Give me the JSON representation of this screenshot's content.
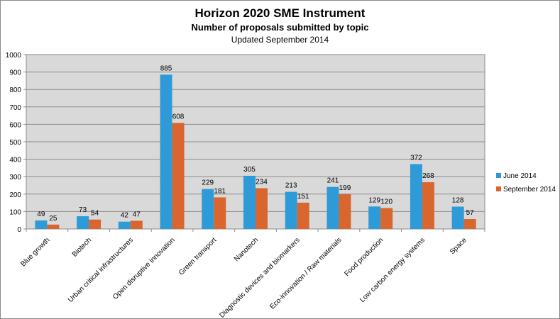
{
  "chart_data": {
    "type": "bar",
    "title": "Horizon 2020 SME Instrument",
    "subtitle": "Number of proposals submitted by topic",
    "updated": "Updated September  2014",
    "categories": [
      "Blue growth",
      "Biotech",
      "Urban critical infrastructures",
      "Open disruptive innovation",
      "Green transport",
      "Nanotech",
      "Diagnostic devices and biomarkers",
      "Eco-innovation / Raw materials",
      "Food production",
      "Low carbon energy systems",
      "Space"
    ],
    "series": [
      {
        "name": "June 2014",
        "color": "#2e9bd8",
        "values": [
          49,
          73,
          42,
          885,
          229,
          305,
          213,
          241,
          129,
          372,
          128
        ]
      },
      {
        "name": "September 2014",
        "color": "#d8662e",
        "values": [
          25,
          54,
          47,
          608,
          181,
          234,
          151,
          199,
          120,
          268,
          57
        ]
      }
    ],
    "ylim": [
      0,
      1000
    ],
    "yticks": [
      0,
      100,
      200,
      300,
      400,
      500,
      600,
      700,
      800,
      900,
      1000
    ],
    "grid": true,
    "legend_position": "right",
    "plot_background": "#d9d9d9",
    "data_labels": true
  }
}
